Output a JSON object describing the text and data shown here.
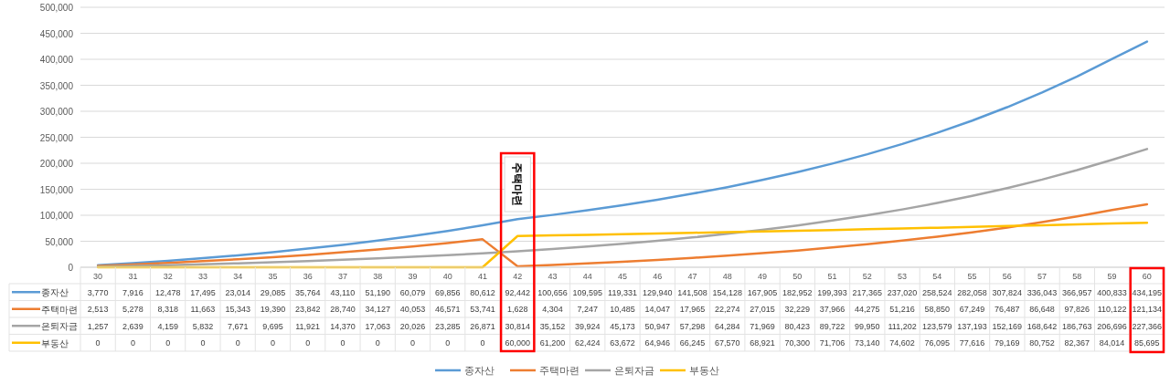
{
  "chart_data": {
    "type": "line",
    "categories": [
      "30",
      "31",
      "32",
      "33",
      "34",
      "35",
      "36",
      "37",
      "38",
      "39",
      "40",
      "41",
      "42",
      "43",
      "44",
      "45",
      "46",
      "47",
      "48",
      "49",
      "50",
      "51",
      "52",
      "53",
      "54",
      "55",
      "56",
      "57",
      "58",
      "59",
      "60"
    ],
    "series": [
      {
        "name": "종자산",
        "color": "#5b9bd5",
        "values": [
          3770,
          7916,
          12478,
          17495,
          23014,
          29085,
          35764,
          43110,
          51190,
          60079,
          69856,
          80612,
          92442,
          100656,
          109595,
          119331,
          129940,
          141508,
          154128,
          167905,
          182952,
          199393,
          217365,
          237020,
          258524,
          282058,
          307824,
          336043,
          366957,
          400833,
          434195
        ],
        "value_labels": [
          "3,770",
          "7,916",
          "12,478",
          "17,495",
          "23,014",
          "29,085",
          "35,764",
          "43,110",
          "51,190",
          "60,079",
          "69,856",
          "80,612",
          "92,442",
          "100,656",
          "109,595",
          "119,331",
          "129,940",
          "141,508",
          "154,128",
          "167,905",
          "182,952",
          "199,393",
          "217,365",
          "237,020",
          "258,524",
          "282,058",
          "307,824",
          "336,043",
          "366,957",
          "400,833",
          "434,195"
        ]
      },
      {
        "name": "주택마련",
        "color": "#ed7d31",
        "values": [
          2513,
          5278,
          8318,
          11663,
          15343,
          19390,
          23842,
          28740,
          34127,
          40053,
          46571,
          53741,
          1628,
          4304,
          7247,
          10485,
          14047,
          17965,
          22274,
          27015,
          32229,
          37966,
          44275,
          51216,
          58850,
          67249,
          76487,
          86648,
          97826,
          110122,
          121134
        ],
        "value_labels": [
          "2,513",
          "5,278",
          "8,318",
          "11,663",
          "15,343",
          "19,390",
          "23,842",
          "28,740",
          "34,127",
          "40,053",
          "46,571",
          "53,741",
          "1,628",
          "4,304",
          "7,247",
          "10,485",
          "14,047",
          "17,965",
          "22,274",
          "27,015",
          "32,229",
          "37,966",
          "44,275",
          "51,216",
          "58,850",
          "67,249",
          "76,487",
          "86,648",
          "97,826",
          "110,122",
          "121,134"
        ]
      },
      {
        "name": "은퇴자금",
        "color": "#a5a5a5",
        "values": [
          1257,
          2639,
          4159,
          5832,
          7671,
          9695,
          11921,
          14370,
          17063,
          20026,
          23285,
          26871,
          30814,
          35152,
          39924,
          45173,
          50947,
          57298,
          64284,
          71969,
          80423,
          89722,
          99950,
          111202,
          123579,
          137193,
          152169,
          168642,
          186763,
          206696,
          227366
        ],
        "value_labels": [
          "1,257",
          "2,639",
          "4,159",
          "5,832",
          "7,671",
          "9,695",
          "11,921",
          "14,370",
          "17,063",
          "20,026",
          "23,285",
          "26,871",
          "30,814",
          "35,152",
          "39,924",
          "45,173",
          "50,947",
          "57,298",
          "64,284",
          "71,969",
          "80,423",
          "89,722",
          "99,950",
          "111,202",
          "123,579",
          "137,193",
          "152,169",
          "168,642",
          "186,763",
          "206,696",
          "227,366"
        ]
      },
      {
        "name": "부동산",
        "color": "#ffc000",
        "values": [
          0,
          0,
          0,
          0,
          0,
          0,
          0,
          0,
          0,
          0,
          0,
          0,
          60000,
          61200,
          62424,
          63672,
          64946,
          66245,
          67570,
          68921,
          70300,
          71706,
          73140,
          74602,
          76095,
          77616,
          79169,
          80752,
          82367,
          84014,
          85695
        ],
        "value_labels": [
          "0",
          "0",
          "0",
          "0",
          "0",
          "0",
          "0",
          "0",
          "0",
          "0",
          "0",
          "0",
          "60,000",
          "61,200",
          "62,424",
          "63,672",
          "64,946",
          "66,245",
          "67,570",
          "68,921",
          "70,300",
          "71,706",
          "73,140",
          "74,602",
          "76,095",
          "77,616",
          "79,169",
          "80,752",
          "82,367",
          "84,014",
          "85,695"
        ]
      }
    ],
    "ylim": [
      0,
      500000
    ],
    "yticks": [
      {
        "value": 0,
        "label": "0"
      },
      {
        "value": 50000,
        "label": "50,000"
      },
      {
        "value": 100000,
        "label": "100,000"
      },
      {
        "value": 150000,
        "label": "150,000"
      },
      {
        "value": 200000,
        "label": "200,000"
      },
      {
        "value": 250000,
        "label": "250,000"
      },
      {
        "value": 300000,
        "label": "300,000"
      },
      {
        "value": 350000,
        "label": "350,000"
      },
      {
        "value": 400000,
        "label": "400,000"
      },
      {
        "value": 450000,
        "label": "450,000"
      },
      {
        "value": 500000,
        "label": "500,000"
      }
    ],
    "grid": "y",
    "legend": "bottom",
    "annotations": [
      "주택마련"
    ]
  }
}
